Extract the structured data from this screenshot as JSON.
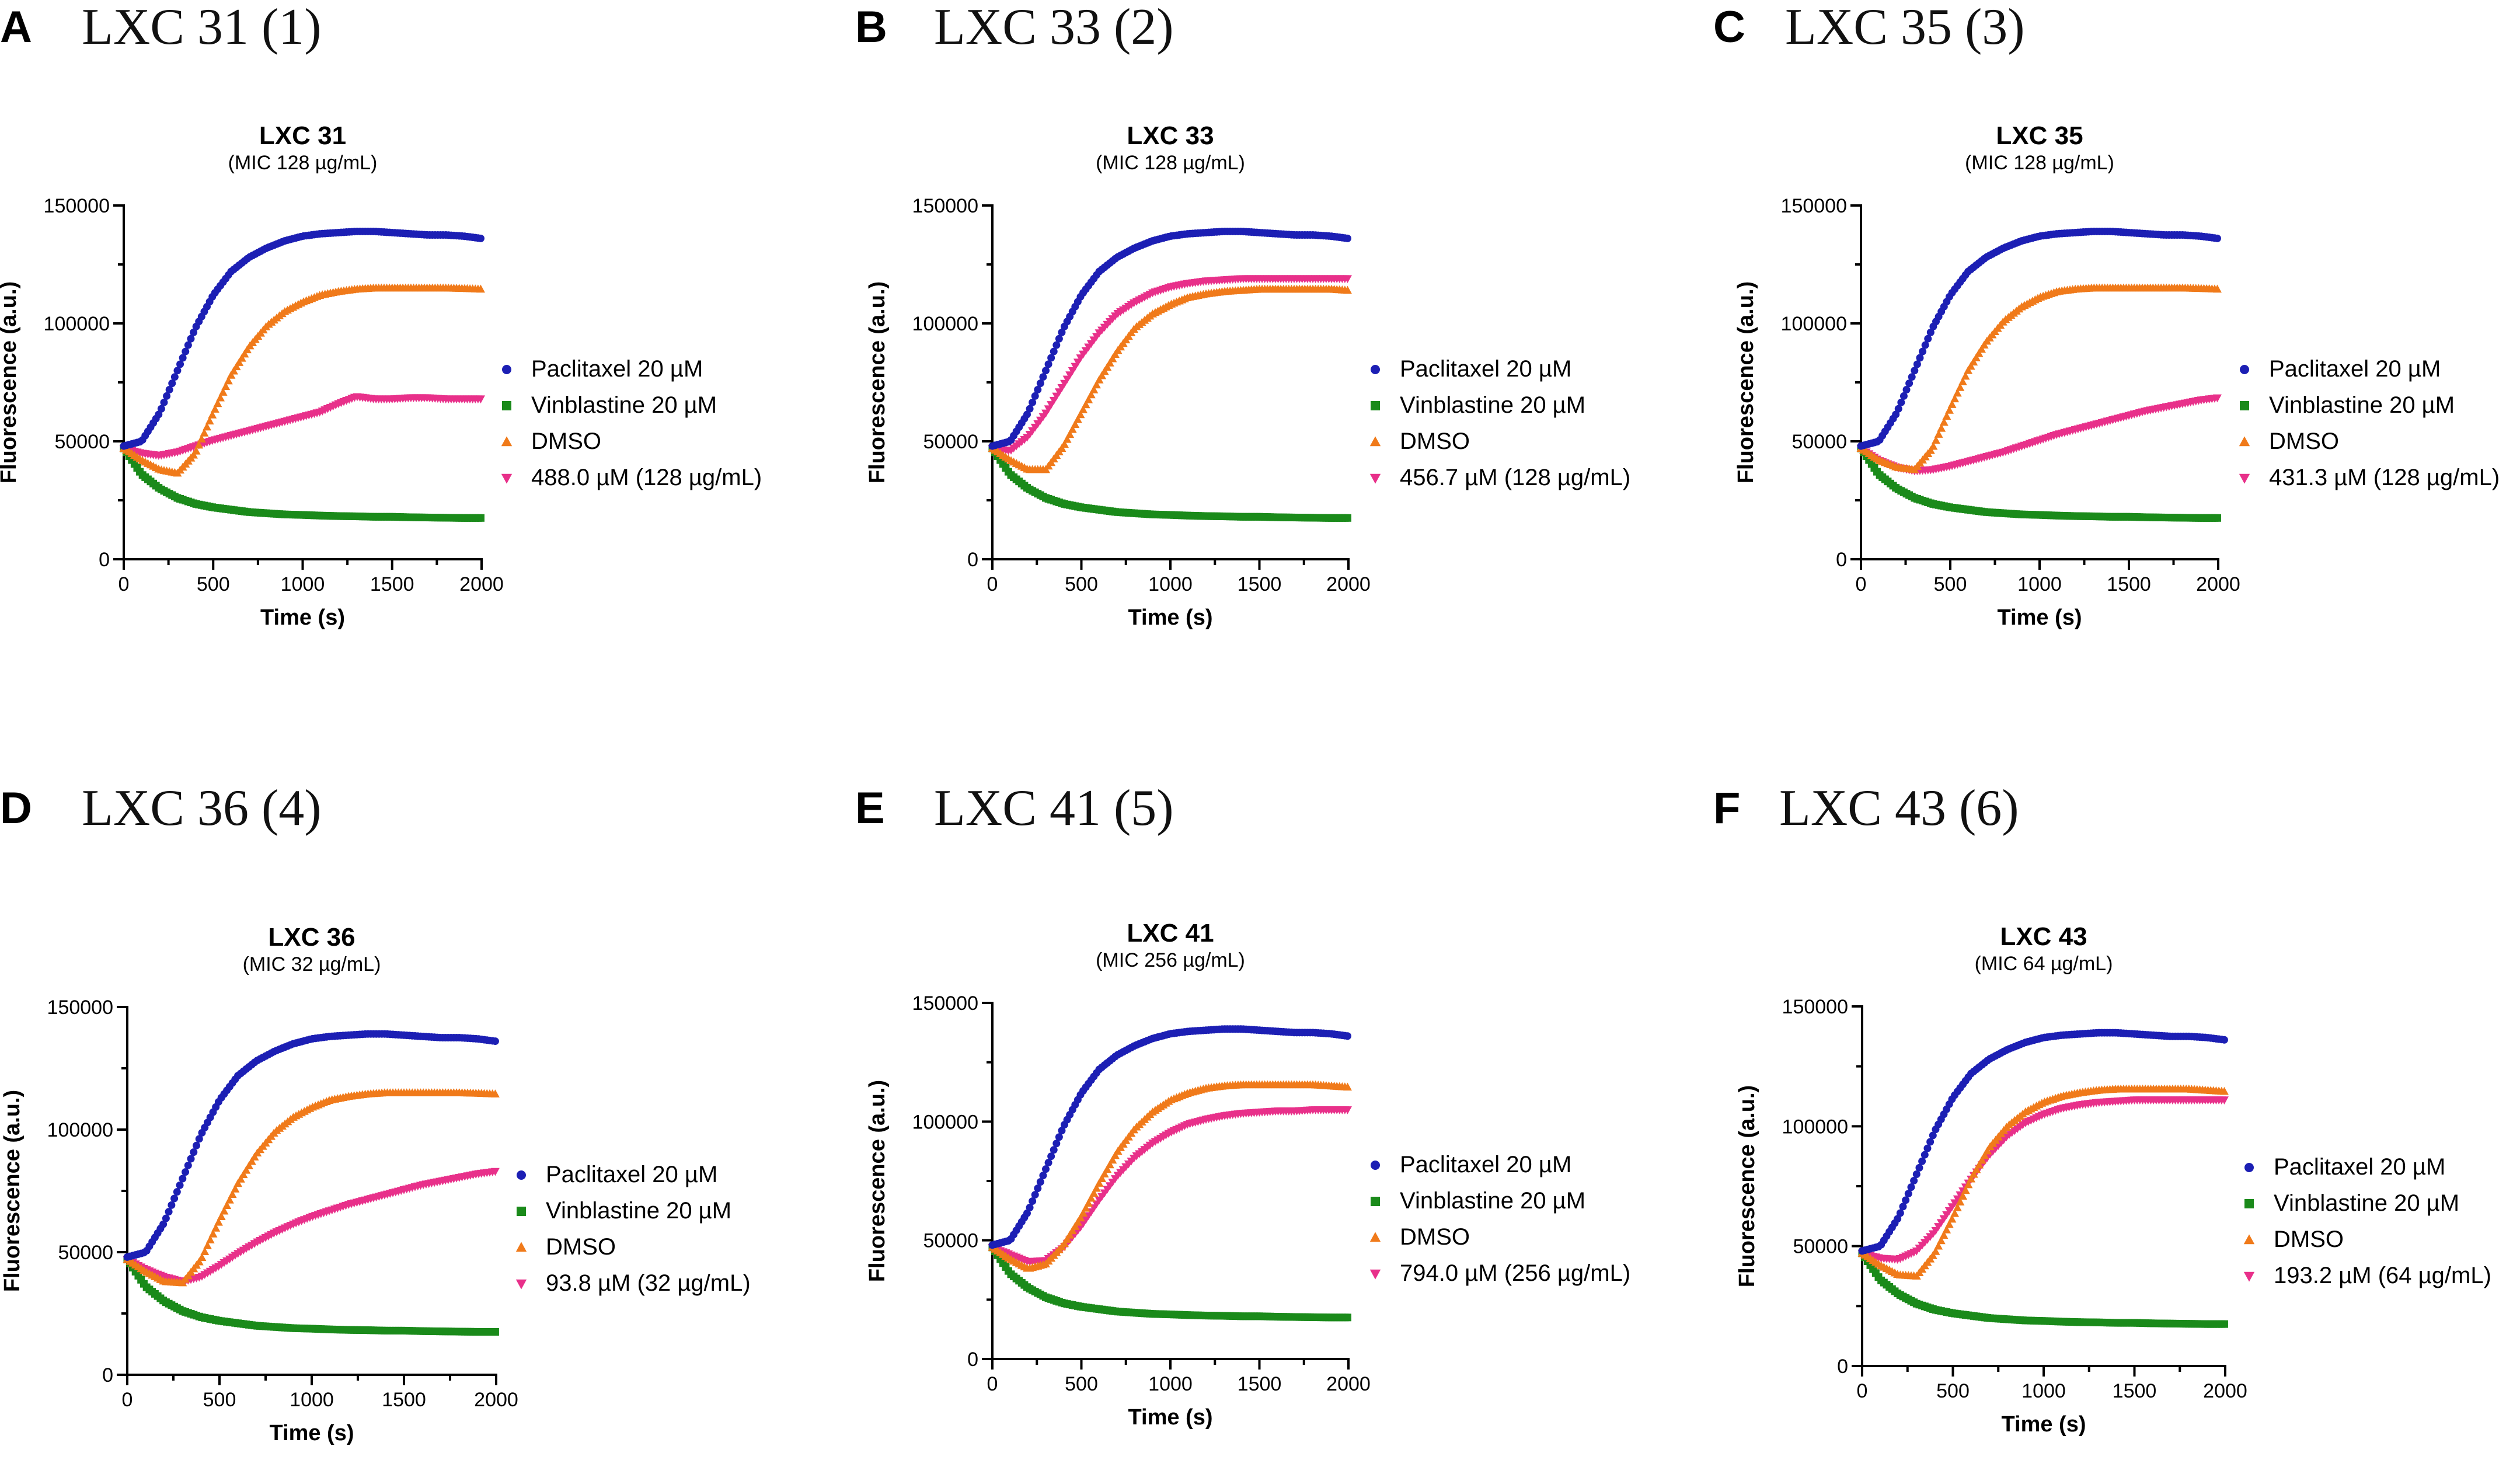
{
  "figure": {
    "panels": [
      {
        "letter": "A",
        "heading": "LXC 31 (1)"
      },
      {
        "letter": "B",
        "heading": "LXC 33 (2)"
      },
      {
        "letter": "C",
        "heading": "LXC 35 (3)"
      },
      {
        "letter": "D",
        "heading": "LXC 36 (4)"
      },
      {
        "letter": "E",
        "heading": "LXC 41 (5)"
      },
      {
        "letter": "F",
        "heading": "LXC 43 (6)"
      }
    ]
  },
  "chart_data": [
    {
      "type": "scatter",
      "title": "LXC 31",
      "subtitle": "(MIC 128 µg/mL)",
      "xlabel": "Time (s)",
      "ylabel": "Fluorescence (a.u.)",
      "xlim": [
        0,
        2000
      ],
      "ylim": [
        0,
        150000
      ],
      "xticks": [
        0,
        500,
        1000,
        1500,
        2000
      ],
      "yticks": [
        0,
        50000,
        100000,
        150000
      ],
      "x": [
        0,
        100,
        200,
        300,
        400,
        500,
        600,
        700,
        800,
        900,
        1000,
        1100,
        1200,
        1300,
        1400,
        1500,
        1600,
        1700,
        1800,
        1900,
        2000
      ],
      "series": [
        {
          "name": "Paclitaxel 20 µM",
          "marker": "circle",
          "color": "#1c1fb4",
          "values": [
            48000,
            50000,
            62000,
            80000,
            98000,
            112000,
            122000,
            128000,
            132000,
            135000,
            137000,
            138000,
            138500,
            139000,
            139000,
            138500,
            138000,
            137500,
            137500,
            137000,
            136000
          ]
        },
        {
          "name": "Vinblastine 20 µM",
          "marker": "square",
          "color": "#1a8a1a",
          "values": [
            47000,
            36000,
            30000,
            26000,
            23500,
            22000,
            21000,
            20000,
            19500,
            19000,
            18800,
            18500,
            18300,
            18200,
            18000,
            18000,
            17800,
            17700,
            17600,
            17500,
            17500
          ]
        },
        {
          "name": "DMSO",
          "marker": "triangle-up",
          "color": "#f07a1a",
          "values": [
            47000,
            42000,
            38000,
            36500,
            45000,
            62000,
            78000,
            90000,
            99000,
            105000,
            109000,
            112000,
            113500,
            114500,
            115000,
            115000,
            115000,
            115000,
            115000,
            114800,
            114500
          ]
        },
        {
          "name": "488.0 µM (128 µg/mL)",
          "marker": "triangle-down",
          "color": "#e8308a",
          "values": [
            47000,
            45000,
            44000,
            45500,
            48000,
            50500,
            52500,
            54500,
            56500,
            58500,
            60500,
            62500,
            66000,
            69000,
            68000,
            68000,
            68500,
            68500,
            68000,
            68000,
            68000
          ]
        }
      ],
      "legend": "right"
    },
    {
      "type": "scatter",
      "title": "LXC 33",
      "subtitle": "(MIC 128 µg/mL)",
      "xlabel": "Time (s)",
      "ylabel": "Fluorescence (a.u.)",
      "xlim": [
        0,
        2000
      ],
      "ylim": [
        0,
        150000
      ],
      "xticks": [
        0,
        500,
        1000,
        1500,
        2000
      ],
      "yticks": [
        0,
        50000,
        100000,
        150000
      ],
      "x": [
        0,
        100,
        200,
        300,
        400,
        500,
        600,
        700,
        800,
        900,
        1000,
        1100,
        1200,
        1300,
        1400,
        1500,
        1600,
        1700,
        1800,
        1900,
        2000
      ],
      "series": [
        {
          "name": "Paclitaxel 20 µM",
          "marker": "circle",
          "color": "#1c1fb4",
          "values": [
            48000,
            50000,
            62000,
            80000,
            98000,
            112000,
            122000,
            128000,
            132000,
            135000,
            137000,
            138000,
            138500,
            139000,
            139000,
            138500,
            138000,
            137500,
            137500,
            137000,
            136000
          ]
        },
        {
          "name": "Vinblastine 20 µM",
          "marker": "square",
          "color": "#1a8a1a",
          "values": [
            47000,
            36000,
            30000,
            26000,
            23500,
            22000,
            21000,
            20000,
            19500,
            19000,
            18800,
            18500,
            18300,
            18200,
            18000,
            18000,
            17800,
            17700,
            17600,
            17500,
            17500
          ]
        },
        {
          "name": "DMSO",
          "marker": "triangle-up",
          "color": "#f07a1a",
          "values": [
            47000,
            42000,
            38000,
            38000,
            48000,
            62000,
            76000,
            88000,
            98000,
            104000,
            108000,
            111000,
            112500,
            113500,
            114000,
            114500,
            114500,
            114500,
            114500,
            114500,
            114000
          ]
        },
        {
          "name": "456.7 µM (128 µg/mL)",
          "marker": "triangle-down",
          "color": "#e8308a",
          "values": [
            47000,
            46000,
            52000,
            62000,
            74000,
            86000,
            96000,
            104000,
            109000,
            113000,
            115500,
            117000,
            118000,
            118500,
            119000,
            119000,
            119000,
            119000,
            119000,
            119000,
            119000
          ]
        }
      ],
      "legend": "right"
    },
    {
      "type": "scatter",
      "title": "LXC 35",
      "subtitle": "(MIC 128 µg/mL)",
      "xlabel": "Time (s)",
      "ylabel": "Fluorescence (a.u.)",
      "xlim": [
        0,
        2000
      ],
      "ylim": [
        0,
        150000
      ],
      "xticks": [
        0,
        500,
        1000,
        1500,
        2000
      ],
      "yticks": [
        0,
        50000,
        100000,
        150000
      ],
      "x": [
        0,
        100,
        200,
        300,
        400,
        500,
        600,
        700,
        800,
        900,
        1000,
        1100,
        1200,
        1300,
        1400,
        1500,
        1600,
        1700,
        1800,
        1900,
        2000
      ],
      "series": [
        {
          "name": "Paclitaxel 20 µM",
          "marker": "circle",
          "color": "#1c1fb4",
          "values": [
            48000,
            50000,
            62000,
            80000,
            98000,
            112000,
            122000,
            128000,
            132000,
            135000,
            137000,
            138000,
            138500,
            139000,
            139000,
            138500,
            138000,
            137500,
            137500,
            137000,
            136000
          ]
        },
        {
          "name": "Vinblastine 20 µM",
          "marker": "square",
          "color": "#1a8a1a",
          "values": [
            47000,
            36000,
            30000,
            26000,
            23500,
            22000,
            21000,
            20000,
            19500,
            19000,
            18800,
            18500,
            18300,
            18200,
            18000,
            18000,
            17800,
            17700,
            17600,
            17500,
            17500
          ]
        },
        {
          "name": "DMSO",
          "marker": "triangle-up",
          "color": "#f07a1a",
          "values": [
            47000,
            42000,
            39000,
            38000,
            47000,
            64000,
            80000,
            92000,
            101000,
            107000,
            111000,
            113500,
            114500,
            115000,
            115000,
            115000,
            115000,
            115000,
            115000,
            114800,
            114500
          ]
        },
        {
          "name": "431.3 µM (128 µg/mL)",
          "marker": "triangle-down",
          "color": "#e8308a",
          "values": [
            47000,
            42000,
            39000,
            37500,
            38000,
            39500,
            41500,
            43500,
            45500,
            48000,
            50500,
            53000,
            55000,
            57000,
            59000,
            61000,
            63000,
            64500,
            66000,
            67500,
            68500
          ]
        }
      ],
      "legend": "right"
    },
    {
      "type": "scatter",
      "title": "LXC 36",
      "subtitle": "(MIC 32 µg/mL)",
      "xlabel": "Time (s)",
      "ylabel": "Fluorescence (a.u.)",
      "xlim": [
        0,
        2000
      ],
      "ylim": [
        0,
        150000
      ],
      "xticks": [
        0,
        500,
        1000,
        1500,
        2000
      ],
      "yticks": [
        0,
        50000,
        100000,
        150000
      ],
      "x": [
        0,
        100,
        200,
        300,
        400,
        500,
        600,
        700,
        800,
        900,
        1000,
        1100,
        1200,
        1300,
        1400,
        1500,
        1600,
        1700,
        1800,
        1900,
        2000
      ],
      "series": [
        {
          "name": "Paclitaxel 20 µM",
          "marker": "circle",
          "color": "#1c1fb4",
          "values": [
            48000,
            50000,
            62000,
            80000,
            98000,
            112000,
            122000,
            128000,
            132000,
            135000,
            137000,
            138000,
            138500,
            139000,
            139000,
            138500,
            138000,
            137500,
            137500,
            137000,
            136000
          ]
        },
        {
          "name": "Vinblastine 20 µM",
          "marker": "square",
          "color": "#1a8a1a",
          "values": [
            47000,
            36000,
            30000,
            26000,
            23500,
            22000,
            21000,
            20000,
            19500,
            19000,
            18800,
            18500,
            18300,
            18200,
            18000,
            18000,
            17800,
            17700,
            17600,
            17500,
            17500
          ]
        },
        {
          "name": "DMSO",
          "marker": "triangle-up",
          "color": "#f07a1a",
          "values": [
            47000,
            42000,
            38000,
            37500,
            47000,
            63000,
            78000,
            90000,
            99000,
            105000,
            109000,
            112000,
            113500,
            114500,
            115000,
            115000,
            115000,
            115000,
            115000,
            114800,
            114500
          ]
        },
        {
          "name": "93.8 µM (32 µg/mL)",
          "marker": "triangle-down",
          "color": "#e8308a",
          "values": [
            47000,
            43000,
            40000,
            38000,
            40000,
            44500,
            49500,
            54000,
            58000,
            61500,
            64500,
            67000,
            69500,
            71500,
            73500,
            75500,
            77500,
            79000,
            80500,
            82000,
            83000
          ]
        }
      ],
      "legend": "right"
    },
    {
      "type": "scatter",
      "title": "LXC 41",
      "subtitle": "(MIC 256 µg/mL)",
      "xlabel": "Time (s)",
      "ylabel": "Fluorescence (a.u.)",
      "xlim": [
        0,
        2000
      ],
      "ylim": [
        0,
        150000
      ],
      "xticks": [
        0,
        500,
        1000,
        1500,
        2000
      ],
      "yticks": [
        0,
        50000,
        100000,
        150000
      ],
      "x": [
        0,
        100,
        200,
        300,
        400,
        500,
        600,
        700,
        800,
        900,
        1000,
        1100,
        1200,
        1300,
        1400,
        1500,
        1600,
        1700,
        1800,
        1900,
        2000
      ],
      "series": [
        {
          "name": "Paclitaxel 20 µM",
          "marker": "circle",
          "color": "#1c1fb4",
          "values": [
            48000,
            50000,
            62000,
            80000,
            98000,
            112000,
            122000,
            128000,
            132000,
            135000,
            137000,
            138000,
            138500,
            139000,
            139000,
            138500,
            138000,
            137500,
            137500,
            137000,
            136000
          ]
        },
        {
          "name": "Vinblastine 20 µM",
          "marker": "square",
          "color": "#1a8a1a",
          "values": [
            47000,
            36000,
            30000,
            26000,
            23500,
            22000,
            21000,
            20000,
            19500,
            19000,
            18800,
            18500,
            18300,
            18200,
            18000,
            18000,
            17800,
            17700,
            17600,
            17500,
            17500
          ]
        },
        {
          "name": "DMSO",
          "marker": "triangle-up",
          "color": "#f07a1a",
          "values": [
            47000,
            42000,
            38000,
            40000,
            48000,
            60000,
            74000,
            87000,
            97000,
            104000,
            109000,
            112000,
            114000,
            115000,
            115500,
            115500,
            115500,
            115500,
            115500,
            115000,
            114500
          ]
        },
        {
          "name": "794.0 µM (256 µg/mL)",
          "marker": "triangle-down",
          "color": "#e8308a",
          "values": [
            47000,
            44000,
            41000,
            41500,
            47000,
            56000,
            67000,
            77000,
            85000,
            91000,
            95500,
            99000,
            101000,
            102500,
            103500,
            104000,
            104500,
            104500,
            105000,
            105000,
            105000
          ]
        }
      ],
      "legend": "right"
    },
    {
      "type": "scatter",
      "title": "LXC 43",
      "subtitle": "(MIC 64 µg/mL)",
      "xlabel": "Time (s)",
      "ylabel": "Fluorescence (a.u.)",
      "xlim": [
        0,
        2000
      ],
      "ylim": [
        0,
        150000
      ],
      "xticks": [
        0,
        500,
        1000,
        1500,
        2000
      ],
      "yticks": [
        0,
        50000,
        100000,
        150000
      ],
      "x": [
        0,
        100,
        200,
        300,
        400,
        500,
        600,
        700,
        800,
        900,
        1000,
        1100,
        1200,
        1300,
        1400,
        1500,
        1600,
        1700,
        1800,
        1900,
        2000
      ],
      "series": [
        {
          "name": "Paclitaxel 20 µM",
          "marker": "circle",
          "color": "#1c1fb4",
          "values": [
            48000,
            50000,
            62000,
            80000,
            98000,
            112000,
            122000,
            128000,
            132000,
            135000,
            137000,
            138000,
            138500,
            139000,
            139000,
            138500,
            138000,
            137500,
            137500,
            137000,
            136000
          ]
        },
        {
          "name": "Vinblastine 20 µM",
          "marker": "square",
          "color": "#1a8a1a",
          "values": [
            47000,
            36000,
            30000,
            26000,
            23500,
            22000,
            21000,
            20000,
            19500,
            19000,
            18800,
            18500,
            18300,
            18200,
            18000,
            18000,
            17800,
            17700,
            17600,
            17500,
            17500
          ]
        },
        {
          "name": "DMSO",
          "marker": "triangle-up",
          "color": "#f07a1a",
          "values": [
            47000,
            42000,
            38000,
            37500,
            47000,
            62000,
            78000,
            91000,
            100000,
            106000,
            110000,
            112500,
            114000,
            115000,
            115500,
            115500,
            115500,
            115500,
            115500,
            115000,
            114500
          ]
        },
        {
          "name": "193.2 µM (64 µg/mL)",
          "marker": "triangle-down",
          "color": "#e8308a",
          "values": [
            47000,
            45000,
            44500,
            48000,
            56000,
            67000,
            78000,
            88000,
            96000,
            101500,
            105000,
            107500,
            109000,
            110000,
            110500,
            111000,
            111000,
            111000,
            111000,
            111000,
            111000
          ]
        }
      ],
      "legend": "right"
    }
  ]
}
